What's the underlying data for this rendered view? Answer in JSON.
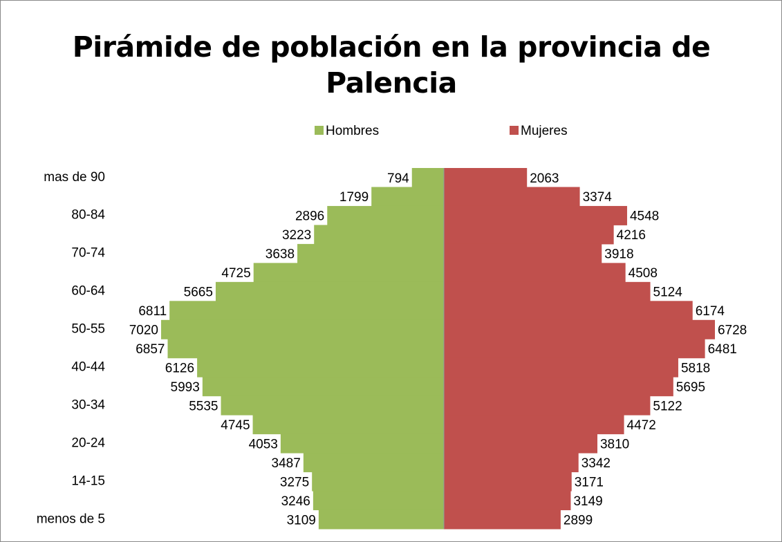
{
  "chart_data": {
    "type": "bar",
    "orientation": "horizontal",
    "title": "Pirámide de población en la provincia de Palencia",
    "categories": [
      "mas de 90",
      null,
      "80-84",
      null,
      "70-74",
      null,
      "60-64",
      null,
      "50-55",
      null,
      "40-44",
      null,
      "30-34",
      null,
      "20-24",
      null,
      "14-15",
      null,
      "menos de 5"
    ],
    "series": [
      {
        "name": "Hombres",
        "color": "#9bbb59",
        "values": [
          794,
          1799,
          2896,
          3223,
          3638,
          4725,
          5665,
          6811,
          7020,
          6857,
          6126,
          5993,
          5535,
          4745,
          4053,
          3487,
          3275,
          3246,
          3109
        ]
      },
      {
        "name": "Mujeres",
        "color": "#c0504d",
        "values": [
          2063,
          3374,
          4548,
          4216,
          3918,
          4508,
          5124,
          6174,
          6728,
          6481,
          5818,
          5695,
          5122,
          4472,
          3810,
          3342,
          3171,
          3149,
          2899
        ]
      }
    ],
    "legend": "top"
  }
}
